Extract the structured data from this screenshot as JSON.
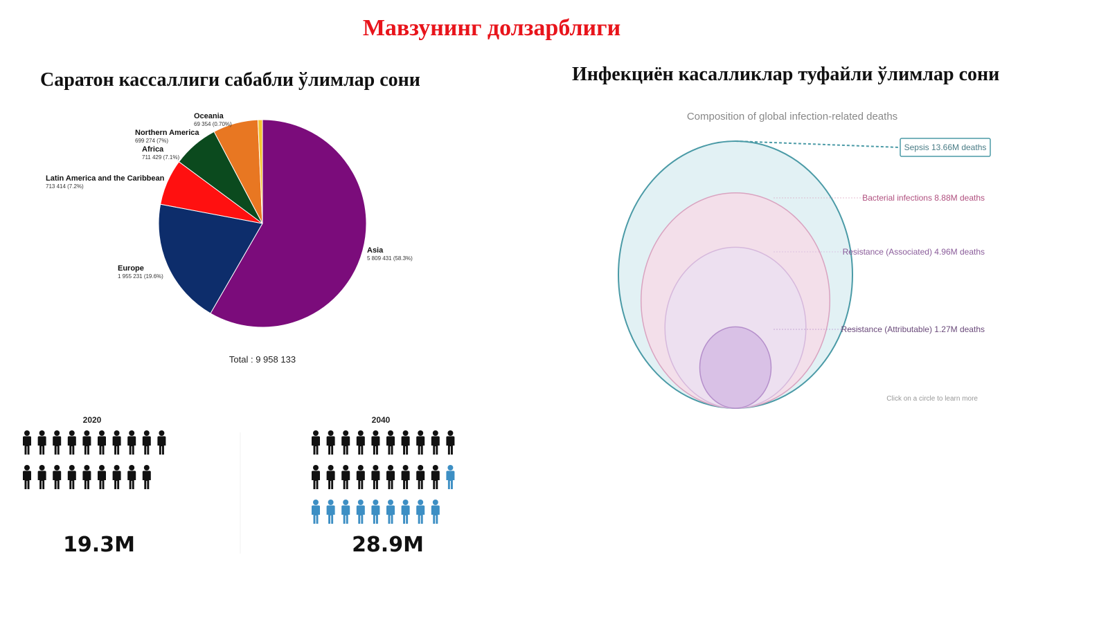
{
  "slide": {
    "title": "Мавзунинг долзарблиги"
  },
  "left": {
    "title": "Саратон кассаллиги сабабли ўлимлар сони"
  },
  "right": {
    "title": "Инфекциён касалликлар туфайли ўлимлар сони"
  },
  "chart_data": [
    {
      "type": "pie",
      "title": "",
      "total_label": "Total : 9 958 133",
      "slices": [
        {
          "name": "Asia",
          "value": 5809431,
          "label": "5 809 431 (58.3%)",
          "color": "#7b0c7b"
        },
        {
          "name": "Europe",
          "value": 1955231,
          "label": "1 955 231 (19.6%)",
          "color": "#0d2d6b"
        },
        {
          "name": "Latin America and the Caribbean",
          "value": 713414,
          "label": "713 414 (7.2%)",
          "color": "#ff1010"
        },
        {
          "name": "Africa",
          "value": 711429,
          "label": "711 429 (7.1%)",
          "color": "#0b4a1e"
        },
        {
          "name": "Northern America",
          "value": 699274,
          "label": "699 274 (7%)",
          "color": "#0b4a1e"
        },
        {
          "name": "Oceania",
          "value": 69354,
          "label": "69 354 (0.70%)",
          "color": "#f4c430"
        }
      ],
      "extra_slice_color": "#e87722"
    },
    {
      "type": "pictogram",
      "groups": [
        {
          "year": "2020",
          "value": "19.3M",
          "dark_icons": 19,
          "blue_icons": 0
        },
        {
          "year": "2040",
          "value": "28.9M",
          "dark_icons": 19,
          "blue_icons": 10
        }
      ],
      "colors": {
        "dark": "#111111",
        "blue": "#3d8fc4"
      }
    },
    {
      "type": "nested-circles",
      "title": "Composition of global infection-related deaths",
      "hint": "Click on a circle to learn more",
      "circles": [
        {
          "label": "Sepsis 13.66M deaths",
          "value": 13.66,
          "fill": "#e2f1f4",
          "stroke": "#4a9aa6",
          "text_color": "#4a7c86"
        },
        {
          "label": "Bacterial infections 8.88M deaths",
          "value": 8.88,
          "fill": "#f3dfea",
          "stroke": "#d9a3c0",
          "text_color": "#b0507f"
        },
        {
          "label": "Resistance (Associated) 4.96M deaths",
          "value": 4.96,
          "fill": "#ede0f0",
          "stroke": "#d6b8dc",
          "text_color": "#8a5c9a"
        },
        {
          "label": "Resistance (Attributable) 1.27M deaths",
          "value": 1.27,
          "fill": "#d9c1e6",
          "stroke": "#b58fcb",
          "text_color": "#6a4a7a"
        }
      ]
    }
  ]
}
